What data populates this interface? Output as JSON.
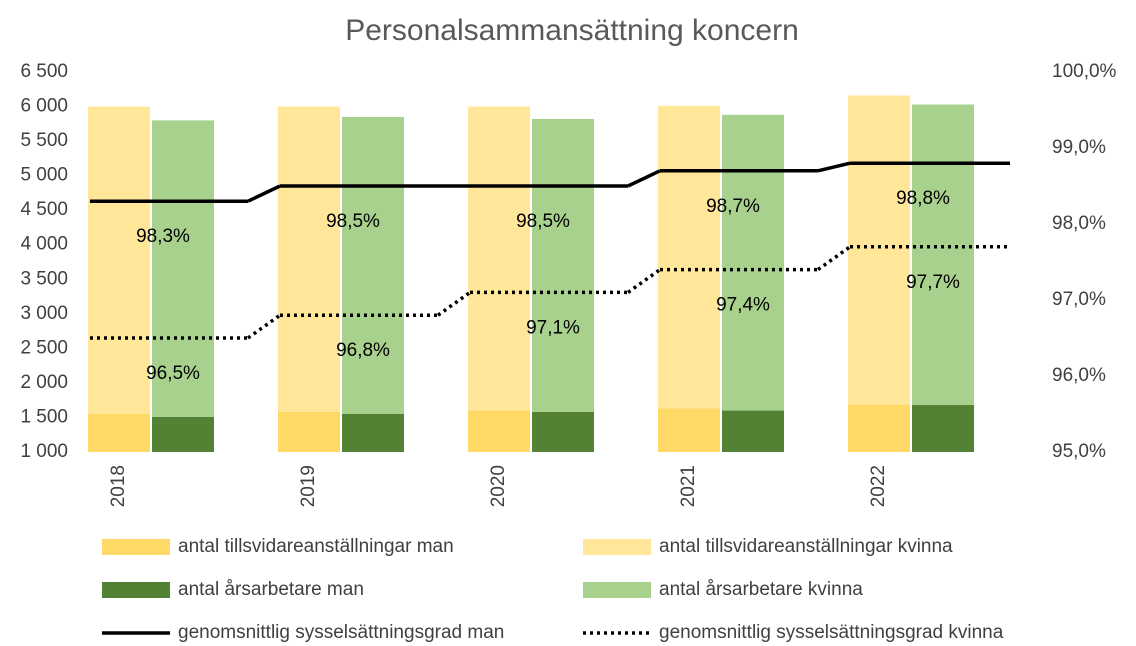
{
  "chart_data": {
    "type": "bar",
    "title": "Personalsammansättning koncern",
    "categories": [
      "2018",
      "2019",
      "2020",
      "2021",
      "2022"
    ],
    "series": [
      {
        "name": "antal tillsvidareanställningar man",
        "color": "#ffd966",
        "stack": 0,
        "values": [
          1550,
          1580,
          1600,
          1630,
          1690
        ]
      },
      {
        "name": "antal tillsvidareanställningar kvinna",
        "color": "#ffe699",
        "stack": 0,
        "values": [
          4450,
          4420,
          4400,
          4380,
          4470
        ]
      },
      {
        "name": "antal årsarbetare man",
        "color": "#548235",
        "stack": 1,
        "values": [
          1510,
          1550,
          1580,
          1600,
          1680
        ]
      },
      {
        "name": "antal årsarbetare kvinna",
        "color": "#a9d18e",
        "stack": 1,
        "values": [
          4290,
          4300,
          4240,
          4280,
          4350
        ]
      },
      {
        "name": "genomsnittlig sysselsättningsgrad man",
        "color": "#000000",
        "type": "line",
        "dash": false,
        "axis": "y2",
        "values": [
          98.3,
          98.5,
          98.5,
          98.7,
          98.8
        ],
        "value_labels": [
          "98,3%",
          "98,5%",
          "98,5%",
          "98,7%",
          "98,8%"
        ]
      },
      {
        "name": "genomsnittlig sysselsättningsgrad kvinna",
        "color": "#000000",
        "type": "line",
        "dash": true,
        "axis": "y2",
        "values": [
          96.5,
          96.8,
          97.1,
          97.4,
          97.7
        ],
        "value_labels": [
          "96,5%",
          "96,8%",
          "97,1%",
          "97,4%",
          "97,7%"
        ]
      }
    ],
    "ylim": [
      1000,
      6500
    ],
    "yticks": [
      {
        "value": 1000,
        "label": "1 000"
      },
      {
        "value": 1500,
        "label": "1 500"
      },
      {
        "value": 2000,
        "label": "2 000"
      },
      {
        "value": 2500,
        "label": "2 500"
      },
      {
        "value": 3000,
        "label": "3 000"
      },
      {
        "value": 3500,
        "label": "3 500"
      },
      {
        "value": 4000,
        "label": "4 000"
      },
      {
        "value": 4500,
        "label": "4 500"
      },
      {
        "value": 5000,
        "label": "5 000"
      },
      {
        "value": 5500,
        "label": "5 500"
      },
      {
        "value": 6000,
        "label": "6 000"
      },
      {
        "value": 6500,
        "label": "6 500"
      }
    ],
    "y2lim": [
      95,
      100
    ],
    "y2ticks": [
      {
        "value": 95,
        "label": "95,0%"
      },
      {
        "value": 96,
        "label": "96,0%"
      },
      {
        "value": 97,
        "label": "97,0%"
      },
      {
        "value": 98,
        "label": "98,0%"
      },
      {
        "value": 99,
        "label": "99,0%"
      },
      {
        "value": 100,
        "label": "100,0%"
      }
    ],
    "grid": false
  }
}
